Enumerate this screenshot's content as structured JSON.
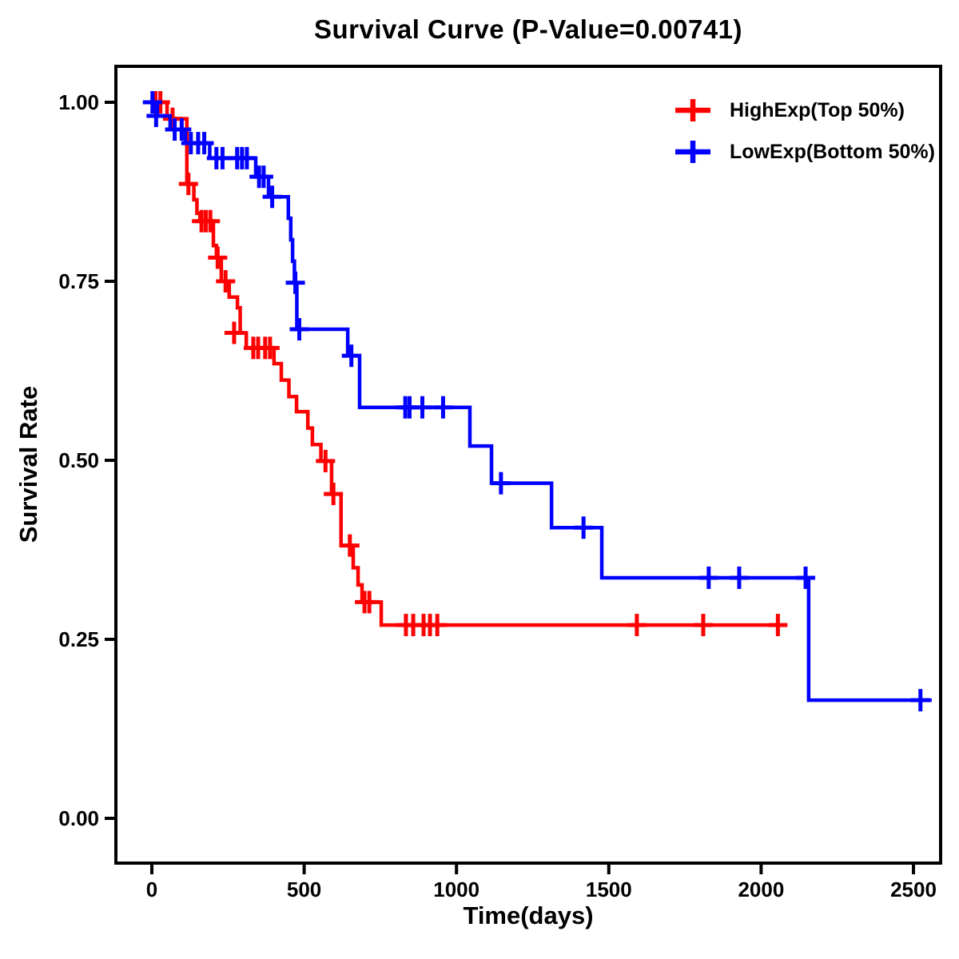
{
  "title": "Survival Curve (P-Value=0.00741)",
  "p_value": "0.00741",
  "chart_data": {
    "type": "line",
    "subtype": "kaplan-meier-step-survival",
    "title": "Survival Curve (P-Value=0.00741)",
    "xlabel": "Time(days)",
    "ylabel": "Survival Rate",
    "grid": false,
    "background": "#ffffff",
    "axis_color": "#000000",
    "legend_position": "top-right",
    "x_ticks": {
      "values": [
        0,
        500,
        1000,
        1500,
        2000,
        2500
      ],
      "labels": [
        "0",
        "500",
        "1000",
        "1500",
        "2000",
        "2500"
      ]
    },
    "y_ticks": {
      "values": [
        1.0,
        0.75,
        0.5,
        0.25,
        0.0
      ],
      "labels": [
        "1.00",
        "0.75",
        "0.50",
        "0.25",
        "0.00"
      ]
    },
    "xlim": [
      0,
      2590
    ],
    "ylim": [
      0,
      1.0
    ],
    "series": [
      {
        "name": "HighExp(Top 50%)",
        "color": "#FF0000",
        "end_time": 2060,
        "steps": [
          [
            0,
            1.0
          ],
          [
            50,
            0.977
          ],
          [
            115,
            0.886
          ],
          [
            138,
            0.864
          ],
          [
            148,
            0.845
          ],
          [
            158,
            0.834
          ],
          [
            202,
            0.8
          ],
          [
            212,
            0.783
          ],
          [
            228,
            0.75
          ],
          [
            254,
            0.728
          ],
          [
            281,
            0.713
          ],
          [
            290,
            0.678
          ],
          [
            310,
            0.657
          ],
          [
            401,
            0.635
          ],
          [
            425,
            0.612
          ],
          [
            450,
            0.589
          ],
          [
            475,
            0.568
          ],
          [
            512,
            0.545
          ],
          [
            527,
            0.522
          ],
          [
            555,
            0.499
          ],
          [
            590,
            0.453
          ],
          [
            621,
            0.381
          ],
          [
            661,
            0.35
          ],
          [
            677,
            0.326
          ],
          [
            690,
            0.302
          ],
          [
            753,
            0.27
          ]
        ],
        "censors": [
          [
            12,
            1.0
          ],
          [
            28,
            1.0
          ],
          [
            68,
            0.977
          ],
          [
            120,
            0.886
          ],
          [
            163,
            0.834
          ],
          [
            177,
            0.834
          ],
          [
            192,
            0.834
          ],
          [
            216,
            0.783
          ],
          [
            242,
            0.75
          ],
          [
            270,
            0.678
          ],
          [
            333,
            0.657
          ],
          [
            349,
            0.657
          ],
          [
            372,
            0.657
          ],
          [
            388,
            0.657
          ],
          [
            570,
            0.499
          ],
          [
            596,
            0.453
          ],
          [
            650,
            0.381
          ],
          [
            698,
            0.302
          ],
          [
            714,
            0.302
          ],
          [
            834,
            0.27
          ],
          [
            858,
            0.27
          ],
          [
            892,
            0.27
          ],
          [
            913,
            0.27
          ],
          [
            937,
            0.27
          ],
          [
            1592,
            0.27
          ],
          [
            1810,
            0.27
          ],
          [
            2055,
            0.27
          ]
        ]
      },
      {
        "name": "LowExp(Bottom 50%)",
        "color": "#0000FF",
        "end_time": 2560,
        "steps": [
          [
            0,
            1.0
          ],
          [
            18,
            0.981
          ],
          [
            60,
            0.962
          ],
          [
            110,
            0.943
          ],
          [
            190,
            0.922
          ],
          [
            341,
            0.896
          ],
          [
            383,
            0.868
          ],
          [
            448,
            0.838
          ],
          [
            456,
            0.808
          ],
          [
            462,
            0.778
          ],
          [
            468,
            0.748
          ],
          [
            476,
            0.683
          ],
          [
            643,
            0.646
          ],
          [
            682,
            0.574
          ],
          [
            1044,
            0.52
          ],
          [
            1115,
            0.468
          ],
          [
            1312,
            0.406
          ],
          [
            1477,
            0.336
          ],
          [
            2156,
            0.165
          ]
        ],
        "censors": [
          [
            2,
            1.0
          ],
          [
            14,
            0.981
          ],
          [
            75,
            0.962
          ],
          [
            98,
            0.962
          ],
          [
            128,
            0.943
          ],
          [
            152,
            0.943
          ],
          [
            172,
            0.943
          ],
          [
            212,
            0.922
          ],
          [
            232,
            0.922
          ],
          [
            280,
            0.922
          ],
          [
            296,
            0.922
          ],
          [
            312,
            0.922
          ],
          [
            352,
            0.896
          ],
          [
            367,
            0.896
          ],
          [
            395,
            0.868
          ],
          [
            471,
            0.748
          ],
          [
            484,
            0.683
          ],
          [
            655,
            0.646
          ],
          [
            832,
            0.574
          ],
          [
            846,
            0.574
          ],
          [
            888,
            0.574
          ],
          [
            956,
            0.574
          ],
          [
            1146,
            0.468
          ],
          [
            1417,
            0.406
          ],
          [
            1828,
            0.336
          ],
          [
            1928,
            0.336
          ],
          [
            2146,
            0.336
          ],
          [
            2523,
            0.165
          ]
        ]
      }
    ]
  }
}
